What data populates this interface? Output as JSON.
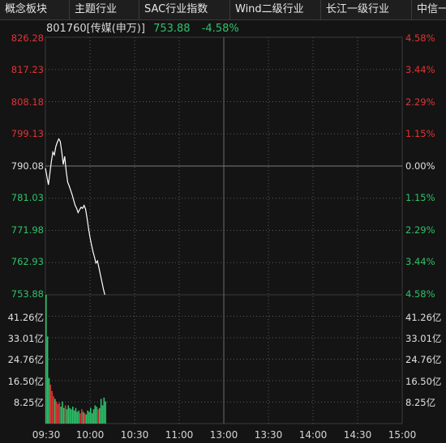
{
  "tabs": [
    "概念板块",
    "主题行业",
    "SAC行业指数",
    "Wind二级行业",
    "长江一级行业",
    "中信一"
  ],
  "header": {
    "code_name": "801760[传媒(申万)]",
    "price": "753.88",
    "change_pct": "-4.58%"
  },
  "colors": {
    "up": "#e03434",
    "down": "#2fc06a",
    "line": "#ffffff",
    "grid": "#3c3c3c",
    "dashed": "#5a5a5a"
  },
  "price_axis": {
    "prices": [
      "826.28",
      "817.23",
      "808.18",
      "799.13",
      "790.08",
      "781.03",
      "771.98",
      "762.93",
      "753.88"
    ],
    "pcts": [
      "4.58%",
      "3.44%",
      "2.29%",
      "1.15%",
      "0.00%",
      "1.15%",
      "2.29%",
      "3.44%",
      "4.58%"
    ]
  },
  "volume_axis": {
    "labels": [
      "41.26亿",
      "33.01亿",
      "24.76亿",
      "16.50亿",
      "8.25亿"
    ]
  },
  "time_axis": [
    "09:30",
    "10:00",
    "10:30",
    "11:00",
    "13:00",
    "13:30",
    "14:00",
    "14:30",
    "15:00"
  ],
  "chart_data": {
    "type": "line",
    "title": "801760[传媒(申万)]",
    "prev_close": 790.08,
    "ylim": [
      753.88,
      826.28
    ],
    "x_start": "09:30",
    "x_end": "15:00",
    "total_minutes": 240,
    "series": [
      {
        "values": [
          789.5,
          787.2,
          784.8,
          788.0,
          791.3,
          794.0,
          793.2,
          795.5,
          796.8,
          797.7,
          797.0,
          794.0,
          790.5,
          792.8,
          788.5,
          785.5,
          784.5,
          783.2,
          782.0,
          780.5,
          779.0,
          778.2,
          777.0,
          777.8,
          778.5,
          778.2,
          779.0,
          778.0,
          775.5,
          772.5,
          770.0,
          768.0,
          766.0,
          764.5,
          762.8,
          763.4,
          761.5,
          759.5,
          757.5,
          755.5,
          753.88
        ]
      }
    ],
    "volume": {
      "unit": "亿",
      "ylim": [
        0,
        49.5
      ],
      "values": [
        49.5,
        33.5,
        17.5,
        15.0,
        12.5,
        10.5,
        9.5,
        8.5,
        7.5,
        8.0,
        6.5,
        8.5,
        6.0,
        7.0,
        5.5,
        7.0,
        6.0,
        5.5,
        6.5,
        5.0,
        6.0,
        4.5,
        5.0,
        4.0,
        5.5,
        4.5,
        4.0,
        3.5,
        5.0,
        4.5,
        6.0,
        4.0,
        5.5,
        7.0,
        6.5,
        5.5,
        6.0,
        9.5,
        7.0,
        10.0,
        8.5
      ]
    }
  }
}
